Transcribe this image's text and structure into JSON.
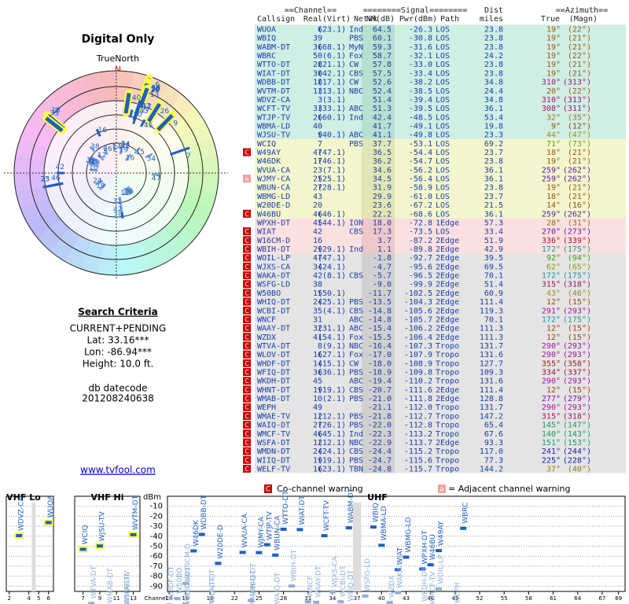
{
  "header": {
    "title": "Digital Only",
    "true_north": "TrueNorth",
    "north": "N"
  },
  "criteria": {
    "title": "Search Criteria",
    "mode": "CURRENT+PENDING",
    "lat": "Lat: 33.16***",
    "lon": "Lon: -86.94***",
    "height": "Height: 10.0 ft.",
    "datecode_label": "db datecode",
    "datecode": "201208240638",
    "link": "www.tvfool.com"
  },
  "table": {
    "groups": [
      "==Channel==",
      "========Signal========",
      "Dist",
      "==Azimuth=="
    ],
    "columns": [
      "Callsign",
      "Real",
      "(Virt)",
      "Netwk",
      "NM(dB)",
      "Pwr(dBm)",
      "Path",
      "miles",
      "True",
      "(Magn)"
    ],
    "rows": [
      [
        "WUOA",
        "6",
        "(23.1)",
        "Ind",
        "64.5",
        "-26.3",
        "LOS",
        "23.8",
        "19°",
        "(22°)"
      ],
      [
        "WBIQ",
        "39",
        null,
        "PBS",
        "60.1",
        "-30.8",
        "LOS",
        "23.8",
        "19°",
        "(21°)"
      ],
      [
        "WABM-DT",
        "36",
        "(68.1)",
        "MyN",
        "59.3",
        "-31.6",
        "LOS",
        "23.8",
        "19°",
        "(21°)"
      ],
      [
        "WBRC",
        "50",
        "(6.1)",
        "Fox",
        "58.7",
        "-32.1",
        "LOS",
        "24.2",
        "19°",
        "(22°)"
      ],
      [
        "WTTO-DT",
        "28",
        "(21.1)",
        "CW",
        "57.8",
        "-33.0",
        "LOS",
        "23.8",
        "19°",
        "(21°)"
      ],
      [
        "WIAT-DT",
        "30",
        "(42.1)",
        "CBS",
        "57.5",
        "-33.4",
        "LOS",
        "23.8",
        "19°",
        "(21°)"
      ],
      [
        "WDBB-DT",
        "18",
        "(17.1)",
        "CW",
        "52.6",
        "-38.2",
        "LOS",
        "34.8",
        "310°",
        "(313°)"
      ],
      [
        "WVTM-DT",
        "13",
        "(13.1)",
        "NBC",
        "52.4",
        "-38.5",
        "LOS",
        "24.4",
        "20°",
        "(22°)"
      ],
      [
        "WDVZ-CA",
        "3",
        "(3.1)",
        null,
        "51.4",
        "-39.4",
        "LOS",
        "34.8",
        "310°",
        "(313°)"
      ],
      [
        "WCFT-TV",
        "33",
        "(33.1)",
        "ABC",
        "51.3",
        "-39.5",
        "LOS",
        "36.1",
        "308°",
        "(311°)"
      ],
      [
        "WTJP-TV",
        "26",
        "(60.1)",
        "Ind",
        "42.4",
        "-48.5",
        "LOS",
        "53.4",
        "32°",
        "(35°)"
      ],
      [
        "WBMA-LD",
        "40",
        null,
        null,
        "41.7",
        "-49.1",
        "LOS",
        "19.8",
        "9°",
        "(12°)"
      ],
      [
        "WJSU-TV",
        "9",
        "(40.1)",
        "ABC",
        "41.1",
        "-49.8",
        "LOS",
        "23.3",
        "44°",
        "(47°)"
      ],
      [
        "WCIQ",
        "7",
        null,
        "PBS",
        "37.7",
        "-53.1",
        "LOS",
        "69.2",
        "71°",
        "(73°)"
      ],
      [
        "W49AY",
        "47",
        "(47.1)",
        null,
        "36.5",
        "-54.4",
        "LOS",
        "23.7",
        "18°",
        "(21°)"
      ],
      [
        "W46DK",
        "17",
        "(46.1)",
        null,
        "36.2",
        "-54.7",
        "LOS",
        "23.8",
        "19°",
        "(21°)"
      ],
      [
        "WVUA-CA",
        "23",
        "(7.1)",
        null,
        "34.6",
        "-56.2",
        "LOS",
        "36.1",
        "259°",
        "(262°)"
      ],
      [
        "WJMY-CA",
        "25",
        "(25.1)",
        null,
        "34.5",
        "-56.4",
        "LOS",
        "36.1",
        "259°",
        "(262°)"
      ],
      [
        "WBUN-CA",
        "27",
        "(28.1)",
        null,
        "31.9",
        "-58.9",
        "LOS",
        "23.8",
        "19°",
        "(21°)"
      ],
      [
        "WBMG-LD",
        "43",
        null,
        null,
        "29.9",
        "-61.0",
        "LOS",
        "23.7",
        "18°",
        "(21°)"
      ],
      [
        "W20DE-D",
        "20",
        null,
        null,
        "23.6",
        "-67.2",
        "LOS",
        "21.5",
        "14°",
        "(16°)"
      ],
      [
        "W46BU",
        "46",
        "(46.1)",
        null,
        "22.2",
        "-68.6",
        "LOS",
        "36.1",
        "259°",
        "(262°)"
      ],
      [
        "WPXH-DT",
        "45",
        "(44.1)",
        "ION",
        "18.0",
        "-72.8",
        "1Edge",
        "57.3",
        "28°",
        "(31°)"
      ],
      [
        "WIAT",
        "42",
        null,
        "CBS",
        "17.3",
        "-73.5",
        "LOS",
        "33.4",
        "270°",
        "(273°)"
      ],
      [
        "W16CM-D",
        "16",
        null,
        null,
        "3.7",
        "-87.2",
        "2Edge",
        "51.9",
        "336°",
        "(339°)"
      ],
      [
        "WBIH-DT",
        "29",
        "(29.1)",
        "Ind",
        "1.1",
        "-89.8",
        "2Edge",
        "42.9",
        "172°",
        "(175°)"
      ],
      [
        "WOIL-LP",
        "47",
        "(47.1)",
        null,
        "-1.8",
        "-92.7",
        "2Edge",
        "39.5",
        "92°",
        "(94°)"
      ],
      [
        "WJXS-CA",
        "34",
        "(24.1)",
        null,
        "-4.7",
        "-95.6",
        "2Edge",
        "69.5",
        "62°",
        "(65°)"
      ],
      [
        "WAKA-DT",
        "42",
        "(8.1)",
        "CBS",
        "-5.7",
        "-96.5",
        "2Edge",
        "70.1",
        "172°",
        "(175°)"
      ],
      [
        "WSFG-LD",
        "38",
        null,
        null,
        "-9.0",
        "-99.9",
        "2Edge",
        "51.4",
        "315°",
        "(318°)"
      ],
      [
        "W50BO",
        "15",
        "(50.1)",
        null,
        "-11.7",
        "-102.5",
        "2Edge",
        "60.9",
        "43°",
        "(46°)"
      ],
      [
        "WHIQ-DT",
        "24",
        "(25.1)",
        "PBS",
        "-13.5",
        "-104.3",
        "2Edge",
        "111.4",
        "12°",
        "(15°)"
      ],
      [
        "WCBI-DT",
        "35",
        "(4.1)",
        "CBS",
        "-14.8",
        "-105.6",
        "2Edge",
        "119.3",
        "291°",
        "(293°)"
      ],
      [
        "WNCF",
        "31",
        null,
        "ABC",
        "-14.8",
        "-105.7",
        "2Edge",
        "70.1",
        "172°",
        "(175°)"
      ],
      [
        "WAAY-DT",
        "32",
        "(31.1)",
        "ABC",
        "-15.4",
        "-106.2",
        "2Edge",
        "111.3",
        "12°",
        "(15°)"
      ],
      [
        "WZDX",
        "41",
        "(54.1)",
        "Fox",
        "-15.5",
        "-106.4",
        "2Edge",
        "111.3",
        "12°",
        "(15°)"
      ],
      [
        "WTVA-DT",
        "8",
        "(9.1)",
        "NBC",
        "-16.4",
        "-107.3",
        "Tropo",
        "131.7",
        "290°",
        "(293°)"
      ],
      [
        "WLOV-DT",
        "16",
        "(27.1)",
        "Fox",
        "-17.0",
        "-107.9",
        "Tropo",
        "131.6",
        "290°",
        "(293°)"
      ],
      [
        "WHDF-DT",
        "14",
        "(15.1)",
        "CW",
        "-18.0",
        "-108.9",
        "Tropo",
        "127.7",
        "355°",
        "(358°)"
      ],
      [
        "WFIQ-DT",
        "36",
        "(36.1)",
        "PBS",
        "-18.9",
        "-109.8",
        "Tropo",
        "109.3",
        "334°",
        "(337°)"
      ],
      [
        "WKDH-DT",
        "45",
        null,
        "ABC",
        "-19.4",
        "-110.2",
        "Tropo",
        "131.6",
        "290°",
        "(293°)"
      ],
      [
        "WHNT-DT",
        "19",
        "(19.1)",
        "CBS",
        "-20.7",
        "-111.6",
        "2Edge",
        "111.4",
        "12°",
        "(15°)"
      ],
      [
        "WMAB-DT",
        "10",
        "(2.1)",
        "PBS",
        "-21.0",
        "-111.8",
        "2Edge",
        "128.8",
        "277°",
        "(279°)"
      ],
      [
        "WEPH",
        "49",
        null,
        null,
        "-21.1",
        "-112.0",
        "Tropo",
        "131.7",
        "290°",
        "(293°)"
      ],
      [
        "WMAE-TV",
        "12",
        "(12.1)",
        "PBS",
        "-21.8",
        "-112.7",
        "Tropo",
        "147.2",
        "315°",
        "(318°)"
      ],
      [
        "WAIQ-DT",
        "27",
        "(26.1)",
        "PBS",
        "-22.0",
        "-112.8",
        "Tropo",
        "65.4",
        "145°",
        "(147°)"
      ],
      [
        "WMCF-TV",
        "46",
        "(45.1)",
        "Ind",
        "-22.3",
        "-113.2",
        "Tropo",
        "67.6",
        "140°",
        "(143°)"
      ],
      [
        "WSFA-DT",
        "12",
        "(12.1)",
        "NBC",
        "-22.9",
        "-113.7",
        "2Edge",
        "93.3",
        "151°",
        "(153°)"
      ],
      [
        "WMDN-DT",
        "24",
        "(24.1)",
        "CBS",
        "-24.4",
        "-115.2",
        "Tropo",
        "117.0",
        "241°",
        "(244°)"
      ],
      [
        "WIIQ-DT",
        "19",
        "(19.1)",
        "PBS",
        "-24.7",
        "-115.6",
        "Tropo",
        "77.3",
        "225°",
        "(228°)"
      ],
      [
        "WELF-TV",
        "16",
        "(23.1)",
        "TBN",
        "-24.8",
        "-115.7",
        "Tropo",
        "144.2",
        "37°",
        "(40°)"
      ]
    ],
    "warnings": [
      null,
      null,
      null,
      null,
      null,
      null,
      null,
      null,
      null,
      null,
      null,
      null,
      null,
      null,
      "C",
      null,
      null,
      "a",
      null,
      null,
      null,
      "C",
      null,
      "C",
      "C",
      "C",
      "C",
      "C",
      "C",
      "C",
      "C",
      "C",
      "C",
      "C",
      "C",
      "C",
      "C",
      "C",
      "C",
      "C",
      "C",
      "C",
      "C",
      "C",
      "C",
      "C",
      "C",
      "C",
      "C",
      "C",
      "C"
    ]
  },
  "legend": {
    "co_mark": "C",
    "co_text": "Co-channel warning",
    "adj_mark": "a",
    "adj_text": "= Adjacent channel warning"
  },
  "spectrum": {
    "y_label": "dBm",
    "x_label": "Channel",
    "ylim": [
      -100,
      0
    ],
    "yticks": [
      -10,
      -20,
      -30,
      -40,
      -50,
      -60,
      -70,
      -80,
      -90
    ],
    "bands": [
      {
        "name": "VHF Lo",
        "xlim": [
          1.7,
          6.5
        ],
        "xticks": [
          2,
          4,
          5,
          6
        ]
      },
      {
        "name": "VHF Hi",
        "xlim": [
          6,
          13.8
        ],
        "xticks": [
          7,
          9,
          11,
          13
        ]
      },
      {
        "name": "UHF",
        "xlim": [
          13.8,
          69.8
        ],
        "xticks": [
          14,
          16,
          19,
          22,
          25,
          28,
          31,
          34,
          37,
          40,
          43,
          46,
          49,
          52,
          55,
          58,
          61,
          64,
          67,
          69
        ]
      }
    ]
  }
}
